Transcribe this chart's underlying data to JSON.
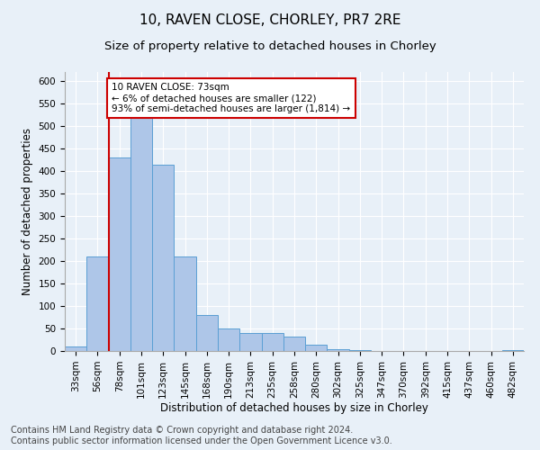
{
  "title1": "10, RAVEN CLOSE, CHORLEY, PR7 2RE",
  "title2": "Size of property relative to detached houses in Chorley",
  "xlabel": "Distribution of detached houses by size in Chorley",
  "ylabel": "Number of detached properties",
  "footnote": "Contains HM Land Registry data © Crown copyright and database right 2024.\nContains public sector information licensed under the Open Government Licence v3.0.",
  "categories": [
    "33sqm",
    "56sqm",
    "78sqm",
    "101sqm",
    "123sqm",
    "145sqm",
    "168sqm",
    "190sqm",
    "213sqm",
    "235sqm",
    "258sqm",
    "280sqm",
    "302sqm",
    "325sqm",
    "347sqm",
    "370sqm",
    "392sqm",
    "415sqm",
    "437sqm",
    "460sqm",
    "482sqm"
  ],
  "values": [
    10,
    210,
    430,
    540,
    415,
    210,
    80,
    50,
    40,
    40,
    33,
    15,
    5,
    2,
    1,
    1,
    1,
    1,
    1,
    1,
    2
  ],
  "bar_color": "#aec6e8",
  "bar_edge_color": "#5a9fd4",
  "vline_color": "#cc0000",
  "annotation_text": "10 RAVEN CLOSE: 73sqm\n← 6% of detached houses are smaller (122)\n93% of semi-detached houses are larger (1,814) →",
  "annotation_box_color": "#ffffff",
  "annotation_box_edge": "#cc0000",
  "ylim": [
    0,
    620
  ],
  "yticks": [
    0,
    50,
    100,
    150,
    200,
    250,
    300,
    350,
    400,
    450,
    500,
    550,
    600
  ],
  "bg_color": "#e8f0f8",
  "plot_bg_color": "#e8f0f8",
  "title1_fontsize": 11,
  "title2_fontsize": 9.5,
  "xlabel_fontsize": 8.5,
  "ylabel_fontsize": 8.5,
  "tick_fontsize": 7.5,
  "footnote_fontsize": 7.0,
  "annotation_fontsize": 7.5
}
